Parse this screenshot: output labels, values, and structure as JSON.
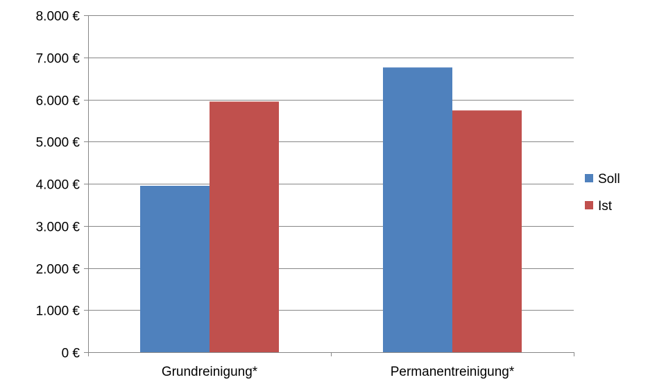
{
  "chart_data": {
    "type": "bar",
    "title": "",
    "xlabel": "",
    "ylabel": "",
    "categories": [
      "Grundreinigung*",
      "Permanentreinigung*"
    ],
    "series": [
      {
        "name": "Soll",
        "color": "#4F81BD",
        "values": [
          3950,
          6760
        ]
      },
      {
        "name": "Ist",
        "color": "#C0504D",
        "values": [
          5950,
          5740
        ]
      }
    ],
    "ylim": [
      0,
      8000
    ],
    "y_ticks": [
      0,
      1000,
      2000,
      3000,
      4000,
      5000,
      6000,
      7000,
      8000
    ],
    "y_tick_labels": [
      "0 €",
      "1.000 €",
      "2.000 €",
      "3.000 €",
      "4.000 €",
      "5.000 €",
      "6.000 €",
      "7.000 €",
      "8.000 €"
    ],
    "grid": true,
    "legend_position": "right"
  }
}
